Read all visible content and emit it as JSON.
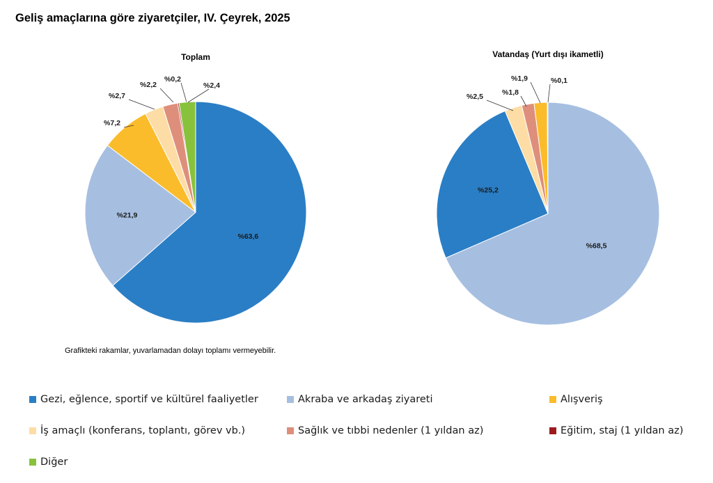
{
  "title": "Geliş amaçlarına göre ziyaretçiler, IV. Çeyrek, 2025",
  "footnote": "Grafikteki rakamlar, yuvarlamadan dolayı toplamı vermeyebilir.",
  "legend": [
    {
      "label": "Gezi, eğlence, sportif ve kültürel faaliyetler",
      "color": "#2a7ec5"
    },
    {
      "label": "Akraba ve arkadaş ziyareti",
      "color": "#a6bfe1"
    },
    {
      "label": "Alışveriş",
      "color": "#fbbc2b"
    },
    {
      "label": "İş amaçlı (konferans, toplantı, görev vb.)",
      "color": "#fddda5"
    },
    {
      "label": "Sağlık ve tıbbi nedenler (1 yıldan az)",
      "color": "#de8f7b"
    },
    {
      "label": "Eğitim, staj (1 yıldan az)",
      "color": "#9d1a1f"
    },
    {
      "label": "Diğer",
      "color": "#88c23d"
    }
  ],
  "chart_data": [
    {
      "type": "pie",
      "title": "Toplam",
      "categories": [
        "Gezi, eğlence, sportif ve kültürel faaliyetler",
        "Akraba ve arkadaş ziyareti",
        "Alışveriş",
        "İş amaçlı (konferans, toplantı, görev vb.)",
        "Sağlık ve tıbbi nedenler (1 yıldan az)",
        "Eğitim, staj (1 yıldan az)",
        "Diğer"
      ],
      "values": [
        63.6,
        21.9,
        7.2,
        2.7,
        2.2,
        0.2,
        2.4
      ],
      "labels": [
        "%63,6",
        "%21,9",
        "%7,2",
        "%2,7",
        "%2,2",
        "%0,2",
        "%2,4"
      ]
    },
    {
      "type": "pie",
      "title": "Vatandaş (Yurt dışı ikametli)",
      "categories": [
        "Akraba ve arkadaş ziyareti",
        "Gezi, eğlence, sportif ve kültürel faaliyetler",
        "İş amaçlı (konferans, toplantı, görev vb.)",
        "Sağlık ve tıbbi nedenler (1 yıldan az)",
        "Alışveriş",
        "Eğitim, staj (1 yıldan az)"
      ],
      "values": [
        68.5,
        25.2,
        2.5,
        1.8,
        1.9,
        0.1
      ],
      "labels": [
        "%68,5",
        "%25,2",
        "%2,5",
        "%1,8",
        "%1,9",
        "%0,1"
      ]
    }
  ]
}
